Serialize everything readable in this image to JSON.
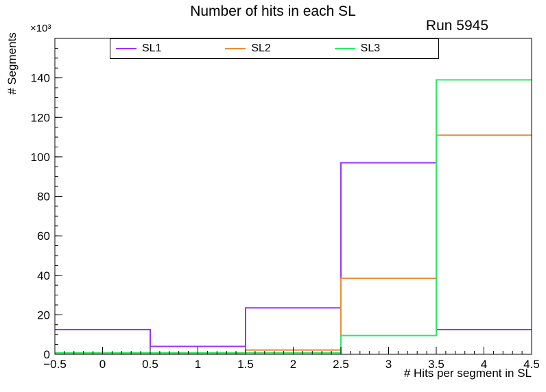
{
  "canvas": {
    "background": "#ffffff"
  },
  "chart_data": {
    "type": "step-histogram",
    "title": "Number of hits in each SL",
    "annotation": "Run 5945",
    "xlabel": "# Hits per segment in SL",
    "ylabel": "# Segments",
    "y_scale_exponent": "×10³",
    "value_units": "thousands of segments",
    "xlim": [
      -0.5,
      4.5
    ],
    "ylim": [
      0,
      160
    ],
    "grid": false,
    "legend_position": "top",
    "bin_edges": [
      -0.5,
      0.5,
      1.5,
      2.5,
      3.5,
      4.5
    ],
    "bin_centers": [
      0,
      1,
      2,
      3,
      4
    ],
    "x_ticks": {
      "values": [
        -0.5,
        0,
        0.5,
        1,
        1.5,
        2,
        2.5,
        3,
        3.5,
        4,
        4.5
      ],
      "labels": [
        "−0.5",
        "0",
        "0.5",
        "1",
        "1.5",
        "2",
        "2.5",
        "3",
        "3.5",
        "4",
        "4.5"
      ]
    },
    "y_ticks": {
      "values": [
        0,
        20,
        40,
        60,
        80,
        100,
        120,
        140
      ],
      "labels": [
        "0",
        "20",
        "40",
        "60",
        "80",
        "100",
        "120",
        "140"
      ]
    },
    "x_minor_step": 0.1,
    "y_minor_step": 5,
    "frame_color": "#000000",
    "series": [
      {
        "name": "SL1",
        "color": "#9933ff",
        "values": [
          12.5,
          4,
          23.5,
          97,
          12.5
        ]
      },
      {
        "name": "SL2",
        "color": "#ea8c3a",
        "values": [
          0.3,
          0.3,
          2.2,
          38.5,
          111
        ]
      },
      {
        "name": "SL3",
        "color": "#31e767",
        "values": [
          0.7,
          0.7,
          0.7,
          9.5,
          139
        ]
      }
    ]
  }
}
